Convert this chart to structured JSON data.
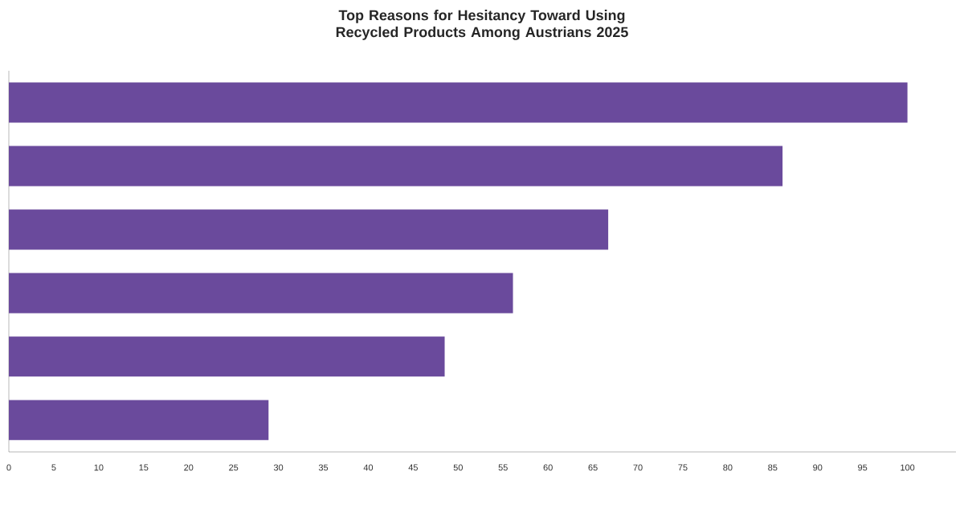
{
  "chart_data": {
    "type": "bar",
    "orientation": "horizontal",
    "title": "Top Reasons for Hesitancy Toward Using Recycled Products Among Austrians 2025",
    "categories": [
      null,
      null,
      null,
      null,
      null,
      null
    ],
    "values": [
      100,
      86.1,
      66.7,
      56.1,
      48.5,
      28.9
    ],
    "color": "#6a4a9c",
    "xlim": [
      0,
      105.4
    ],
    "xticks": [
      0,
      5,
      10,
      15,
      20,
      25,
      30,
      35,
      40,
      45,
      50,
      55,
      60,
      65,
      70,
      75,
      80,
      85,
      90,
      95,
      100
    ],
    "grid": false
  }
}
